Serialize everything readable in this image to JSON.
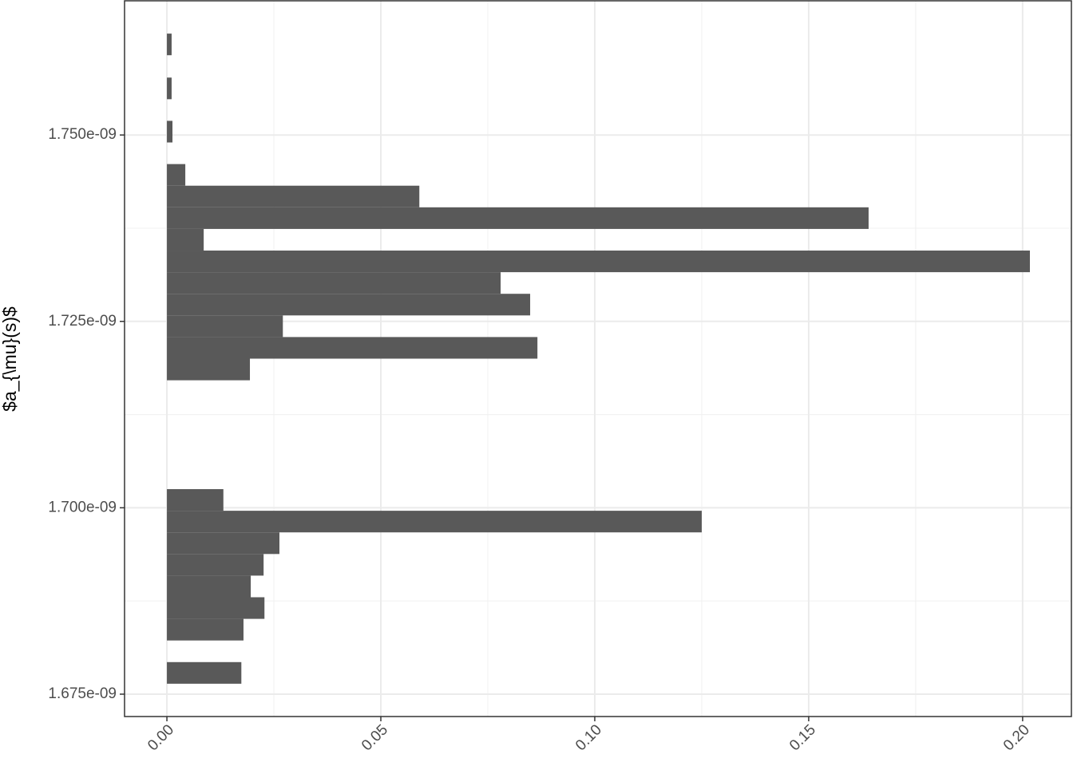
{
  "chart_data": {
    "type": "hbar_histogram",
    "y_label": "$a_{\\mu}(s)$",
    "color": "#595959",
    "bins": [
      1.6764e-09,
      1.6793e-09,
      1.6822e-09,
      1.6851e-09,
      1.688e-09,
      1.6909e-09,
      1.6938e-09,
      1.6967e-09,
      1.6996e-09,
      1.7025e-09,
      1.7055e-09,
      1.7084e-09,
      1.7113e-09,
      1.7142e-09,
      1.7171e-09,
      1.72e-09,
      1.7229e-09,
      1.7258e-09,
      1.7287e-09,
      1.7316e-09,
      1.7345e-09,
      1.7374e-09,
      1.7403e-09,
      1.7432e-09,
      1.7461e-09,
      1.749e-09,
      1.7519e-09,
      1.7548e-09,
      1.7577e-09,
      1.7607e-09,
      1.7636e-09
    ],
    "values": [
      0.0174,
      0,
      0.0179,
      0.0228,
      0.0196,
      0.0226,
      0.0263,
      0.125,
      0.0132,
      0,
      0,
      0,
      0,
      0,
      0.0194,
      0.0866,
      0.0271,
      0.0849,
      0.078,
      0.2017,
      0.0086,
      0.164,
      0.059,
      0.0043,
      0,
      0.0013,
      0,
      0.0011,
      0,
      0.0011
    ],
    "xlim": [
      -0.0099,
      0.2114
    ],
    "ylim": [
      1.672e-09,
      1.768e-09
    ],
    "xticks": [
      {
        "value": 0,
        "label": "0.00"
      },
      0.05,
      {
        "value": 0.1,
        "label": "0.10"
      },
      0.15,
      {
        "value": 0.2,
        "label": "0.20"
      }
    ],
    "yticks": [
      {
        "value": 1.675e-09,
        "label": "1.675e-09"
      },
      {
        "value": 1.7e-09,
        "label": "1.700e-09"
      },
      {
        "value": 1.725e-09,
        "label": "1.725e-09"
      },
      {
        "value": 1.75e-09,
        "label": "1.750e-09"
      }
    ],
    "minor_xticks": [
      0.025,
      0.075,
      0.125,
      0.175
    ],
    "minor_yticks": [
      1.6875e-09,
      1.7125e-09,
      1.7375e-09
    ],
    "grid": true
  }
}
